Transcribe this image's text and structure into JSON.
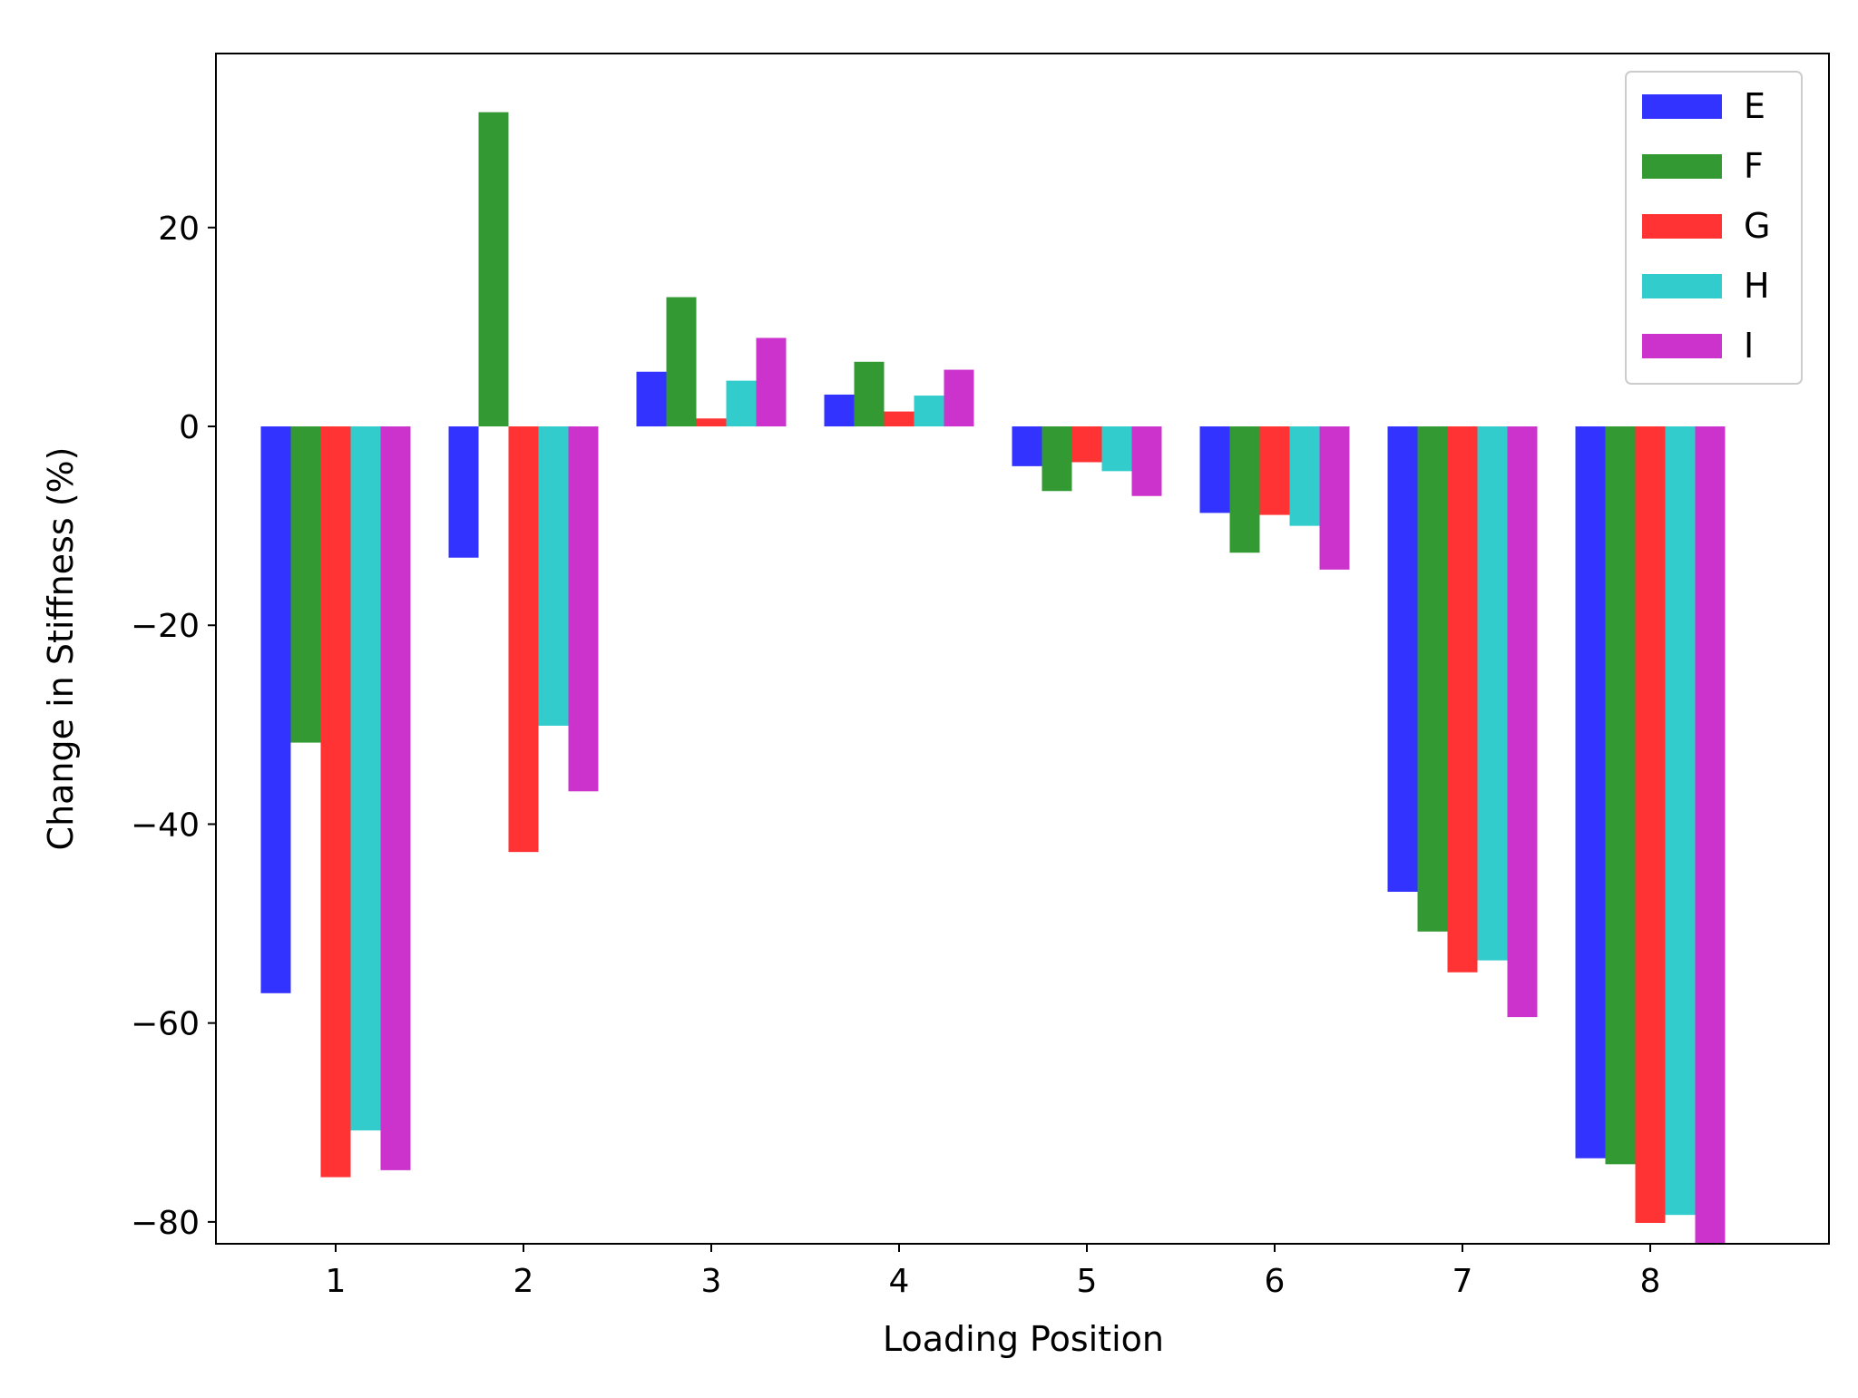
{
  "chart_data": {
    "type": "bar",
    "title": "",
    "xlabel": "Loading Position",
    "ylabel": "Change in Stiffness (%)",
    "categories": [
      "1",
      "2",
      "3",
      "4",
      "5",
      "6",
      "7",
      "8"
    ],
    "ylim": [
      -82.2,
      37.5
    ],
    "yticks": [
      -80,
      -60,
      -40,
      -20,
      0,
      20
    ],
    "ytick_labels": [
      "−80",
      "−60",
      "−40",
      "−20",
      "0",
      "20"
    ],
    "grid": false,
    "legend_position": "top-right",
    "series": [
      {
        "name": "E",
        "color": "#3333ff",
        "values": [
          -57.0,
          -13.2,
          5.5,
          3.2,
          -4.0,
          -8.7,
          -46.8,
          -73.6
        ]
      },
      {
        "name": "F",
        "color": "#339933",
        "values": [
          -31.8,
          31.6,
          13.0,
          6.5,
          -6.5,
          -12.7,
          -50.8,
          -74.2
        ]
      },
      {
        "name": "G",
        "color": "#ff3333",
        "values": [
          -75.5,
          -42.8,
          0.8,
          1.5,
          -3.6,
          -8.9,
          -54.9,
          -80.1
        ]
      },
      {
        "name": "H",
        "color": "#33cccc",
        "values": [
          -70.8,
          -30.1,
          4.6,
          3.1,
          -4.5,
          -10.0,
          -53.7,
          -79.3
        ]
      },
      {
        "name": "I",
        "color": "#cc33cc",
        "values": [
          -74.8,
          -36.7,
          8.9,
          5.7,
          -7.0,
          -14.4,
          -59.4,
          -82.2
        ]
      }
    ]
  }
}
